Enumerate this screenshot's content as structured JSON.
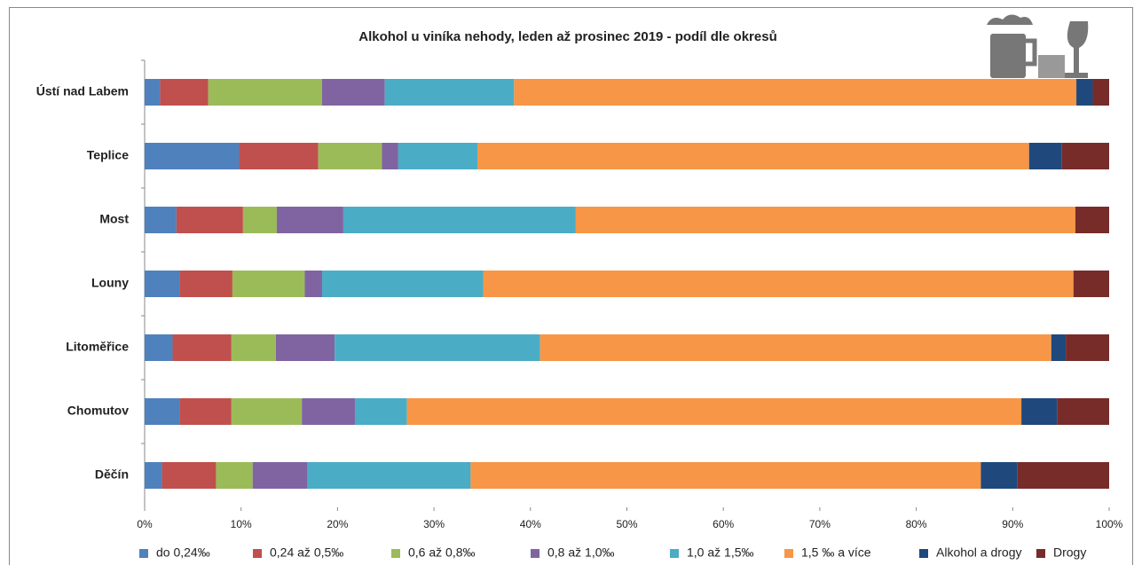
{
  "chart_data": {
    "type": "stacked_barh",
    "title": "Alkohol u viníka nehody, leden až prosinec  2019 - podíl dle okresů",
    "categories": [
      "Ústí nad Labem",
      "Teplice",
      "Most",
      "Louny",
      "Litoměřice",
      "Chomutov",
      "Děčín"
    ],
    "series": [
      {
        "name": "do 0,24‰",
        "color": "#4f81bd",
        "values": [
          1.6,
          9.8,
          3.3,
          3.6,
          2.9,
          3.6,
          1.8
        ]
      },
      {
        "name": "0,24 až 0,5‰",
        "color": "#c0504d",
        "values": [
          5.0,
          8.2,
          6.9,
          5.5,
          6.1,
          5.4,
          5.6
        ]
      },
      {
        "name": "0,6 až 0,8‰",
        "color": "#9bbb59",
        "values": [
          11.8,
          6.6,
          3.5,
          7.5,
          4.6,
          7.3,
          3.8
        ]
      },
      {
        "name": "0,8 až 1,0‰",
        "color": "#8064a2",
        "values": [
          6.5,
          1.7,
          6.9,
          1.8,
          6.1,
          5.5,
          5.7
        ]
      },
      {
        "name": "1,0 až 1,5‰",
        "color": "#4bacc6",
        "values": [
          13.4,
          8.2,
          24.1,
          16.7,
          21.3,
          5.4,
          16.9
        ]
      },
      {
        "name": "1,5 ‰ a více",
        "color": "#f79646",
        "values": [
          58.3,
          57.2,
          51.8,
          61.2,
          53.0,
          63.7,
          52.9
        ]
      },
      {
        "name": "Alkohol a drogy",
        "color": "#1f497d",
        "values": [
          1.7,
          3.4,
          0,
          0,
          1.5,
          3.7,
          3.8
        ]
      },
      {
        "name": "Drogy",
        "color": "#772c2a",
        "values": [
          1.7,
          4.9,
          3.5,
          3.7,
          4.5,
          5.4,
          9.5
        ]
      }
    ],
    "xlim": [
      0,
      100
    ],
    "xticks": [
      {
        "value": 0,
        "label": "0%"
      },
      {
        "value": 10,
        "label": "10%"
      },
      {
        "value": 20,
        "label": "20%"
      },
      {
        "value": 30,
        "label": "30%"
      },
      {
        "value": 40,
        "label": "40%"
      },
      {
        "value": 50,
        "label": "50%"
      },
      {
        "value": 60,
        "label": "60%"
      },
      {
        "value": 70,
        "label": "70%"
      },
      {
        "value": 80,
        "label": "80%"
      },
      {
        "value": 90,
        "label": "90%"
      },
      {
        "value": 100,
        "label": "100%"
      }
    ],
    "legend": "bottom"
  }
}
